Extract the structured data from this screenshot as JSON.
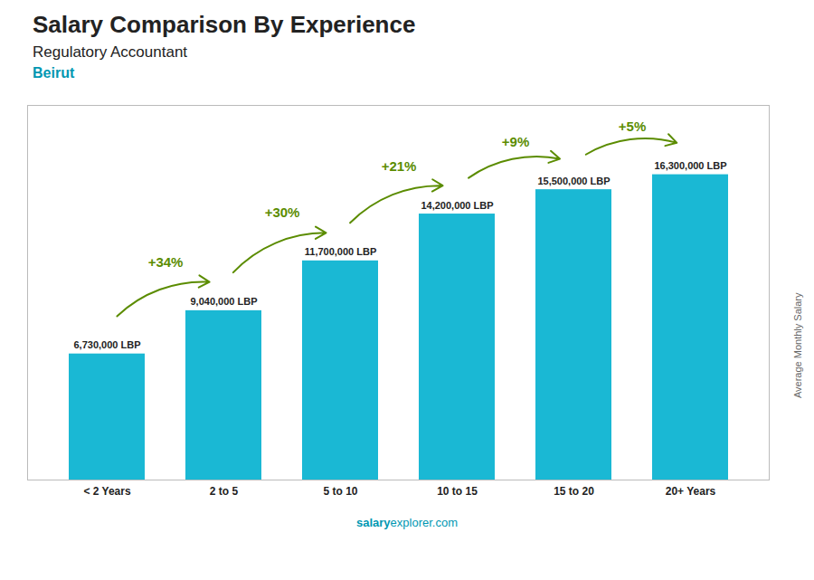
{
  "chart_data": {
    "type": "bar",
    "title": "Salary Comparison By Experience",
    "subtitle": "Regulatory Accountant",
    "annotations": [
      "Beirut",
      "salary",
      "explorer.com"
    ],
    "categories": [
      "< 2 Years",
      "2 to 5",
      "5 to 10",
      "10 to 15",
      "15 to 20",
      "20+ Years"
    ],
    "values": [
      6730000,
      9040000,
      11700000,
      14200000,
      15500000,
      16300000
    ],
    "value_labels": [
      "6,730,000 LBP",
      "9,040,000 LBP",
      "11,700,000 LBP",
      "14,200,000 LBP",
      "15,500,000 LBP",
      "16,300,000 LBP"
    ],
    "data_labels": true,
    "change_labels": [
      "+34%",
      "+30%",
      "+21%",
      "+9%",
      "+5%"
    ],
    "color": "#1ab8d4",
    "ylabel": "Average Monthly Salary",
    "ylim": [
      0,
      20000000
    ],
    "tick_labels": "x",
    "grid": false
  }
}
